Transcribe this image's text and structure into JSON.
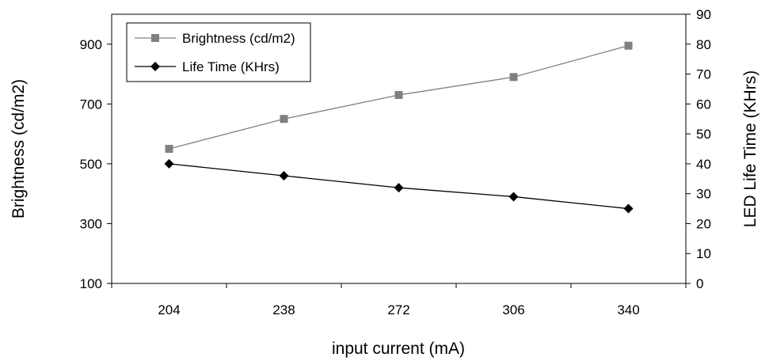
{
  "chart_data": {
    "type": "line",
    "title": "",
    "xlabel": "input current (mA)",
    "ylabel_left": "Brightness (cd/m2)",
    "ylabel_right": "LED Life Time (KHrs)",
    "categories": [
      "204",
      "238",
      "272",
      "306",
      "340"
    ],
    "y_left": {
      "range": [
        100,
        1000
      ],
      "ticks": [
        "100",
        "300",
        "500",
        "700",
        "900"
      ]
    },
    "y_right": {
      "range": [
        0,
        90
      ],
      "ticks": [
        "0",
        "10",
        "20",
        "30",
        "40",
        "50",
        "60",
        "70",
        "80",
        "90"
      ]
    },
    "series": [
      {
        "name": "Brightness (cd/m2)",
        "axis": "left",
        "values": [
          550,
          650,
          730,
          790,
          895
        ],
        "color": "#808080",
        "marker": "square"
      },
      {
        "name": "Life Time (KHrs)",
        "axis": "right",
        "values": [
          40,
          36,
          32,
          29,
          25
        ],
        "color": "#000000",
        "marker": "diamond"
      }
    ],
    "grid": false,
    "legend_position": "top-left"
  }
}
